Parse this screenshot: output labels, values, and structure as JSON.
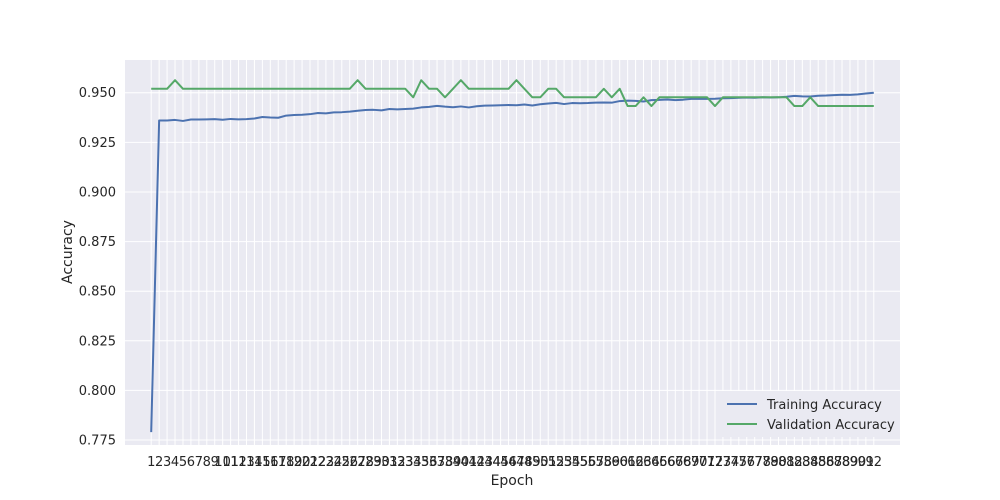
{
  "chart_data": {
    "type": "line",
    "title": "",
    "xlabel": "Epoch",
    "ylabel": "Accuracy",
    "x": [
      1,
      2,
      3,
      4,
      5,
      6,
      7,
      8,
      9,
      10,
      11,
      12,
      13,
      14,
      15,
      16,
      17,
      18,
      19,
      20,
      21,
      22,
      23,
      24,
      25,
      26,
      27,
      28,
      29,
      30,
      31,
      32,
      33,
      34,
      35,
      36,
      37,
      38,
      39,
      40,
      41,
      42,
      43,
      44,
      45,
      46,
      47,
      48,
      49,
      50,
      51,
      52,
      53,
      54,
      55,
      56,
      57,
      58,
      59,
      60,
      61,
      62,
      63,
      64,
      65,
      66,
      67,
      68,
      69,
      70,
      71,
      72,
      73,
      74,
      75,
      76,
      77,
      78,
      79,
      80,
      81,
      82,
      83,
      84,
      85,
      86,
      87,
      88,
      89,
      90,
      91,
      92
    ],
    "x_ticklabels": [
      "1",
      "2",
      "3",
      "4",
      "5",
      "6",
      "7",
      "8",
      "9",
      "10",
      "11",
      "12",
      "13",
      "14",
      "15",
      "16",
      "17",
      "18",
      "19",
      "20",
      "21",
      "22",
      "23",
      "24",
      "25",
      "26",
      "27",
      "28",
      "29",
      "30",
      "31",
      "32",
      "33",
      "34",
      "35",
      "36",
      "37",
      "38",
      "39",
      "40",
      "41",
      "42",
      "43",
      "44",
      "45",
      "46",
      "47",
      "48",
      "49",
      "50",
      "51",
      "52",
      "53",
      "54",
      "55",
      "56",
      "57",
      "58",
      "59",
      "60",
      "61",
      "62",
      "63",
      "64",
      "65",
      "66",
      "67",
      "68",
      "69",
      "70",
      "71",
      "72",
      "73",
      "74",
      "75",
      "76",
      "77",
      "78",
      "79",
      "80",
      "81",
      "82",
      "83",
      "84",
      "85",
      "86",
      "87",
      "88",
      "89",
      "90",
      "91",
      "92"
    ],
    "ylim": [
      0.7725,
      0.9665
    ],
    "yticks": [
      0.775,
      0.8,
      0.825,
      0.85,
      0.875,
      0.9,
      0.925,
      0.95
    ],
    "ytick_labels": [
      "0.775",
      "0.800",
      "0.825",
      "0.850",
      "0.875",
      "0.900",
      "0.925",
      "0.950"
    ],
    "grid": true,
    "legend_position": "lower-right",
    "series": [
      {
        "name": "Training Accuracy",
        "color": "#4c72b0",
        "values": [
          0.779,
          0.936,
          0.936,
          0.9363,
          0.9358,
          0.9365,
          0.9365,
          0.9366,
          0.9367,
          0.9364,
          0.9368,
          0.9366,
          0.9367,
          0.937,
          0.9378,
          0.9375,
          0.9374,
          0.9385,
          0.9388,
          0.9389,
          0.9392,
          0.9398,
          0.9396,
          0.9401,
          0.9402,
          0.9405,
          0.9409,
          0.9413,
          0.9414,
          0.9411,
          0.9418,
          0.9416,
          0.9418,
          0.942,
          0.9426,
          0.9429,
          0.9434,
          0.943,
          0.9427,
          0.9431,
          0.9426,
          0.9432,
          0.9435,
          0.9436,
          0.9437,
          0.9438,
          0.9437,
          0.9441,
          0.9436,
          0.9442,
          0.9446,
          0.9449,
          0.9443,
          0.9448,
          0.9447,
          0.9448,
          0.945,
          0.9451,
          0.945,
          0.9458,
          0.946,
          0.9459,
          0.9456,
          0.9463,
          0.9464,
          0.9466,
          0.9463,
          0.9465,
          0.9469,
          0.947,
          0.9469,
          0.947,
          0.9472,
          0.9473,
          0.9475,
          0.9476,
          0.9475,
          0.9477,
          0.9476,
          0.9477,
          0.948,
          0.9484,
          0.9482,
          0.9481,
          0.9485,
          0.9486,
          0.9488,
          0.949,
          0.9489,
          0.9492,
          0.9496,
          0.95
        ]
      },
      {
        "name": "Validation Accuracy",
        "color": "#55a868",
        "values": [
          0.952,
          0.952,
          0.952,
          0.9563,
          0.952,
          0.952,
          0.952,
          0.952,
          0.952,
          0.952,
          0.952,
          0.952,
          0.952,
          0.952,
          0.952,
          0.952,
          0.952,
          0.952,
          0.952,
          0.952,
          0.952,
          0.952,
          0.952,
          0.952,
          0.952,
          0.952,
          0.9563,
          0.952,
          0.952,
          0.952,
          0.952,
          0.952,
          0.952,
          0.9477,
          0.9563,
          0.952,
          0.952,
          0.9477,
          0.952,
          0.9563,
          0.952,
          0.952,
          0.952,
          0.952,
          0.952,
          0.952,
          0.9563,
          0.952,
          0.9477,
          0.9477,
          0.952,
          0.952,
          0.9477,
          0.9477,
          0.9477,
          0.9477,
          0.9477,
          0.952,
          0.9477,
          0.952,
          0.9433,
          0.9433,
          0.9477,
          0.9433,
          0.9477,
          0.9477,
          0.9477,
          0.9477,
          0.9477,
          0.9477,
          0.9477,
          0.9433,
          0.9477,
          0.9477,
          0.9477,
          0.9477,
          0.9477,
          0.9477,
          0.9477,
          0.9477,
          0.9477,
          0.9433,
          0.9433,
          0.9477,
          0.9433,
          0.9433,
          0.9433,
          0.9433,
          0.9433,
          0.9433,
          0.9433,
          0.9433
        ]
      }
    ]
  }
}
